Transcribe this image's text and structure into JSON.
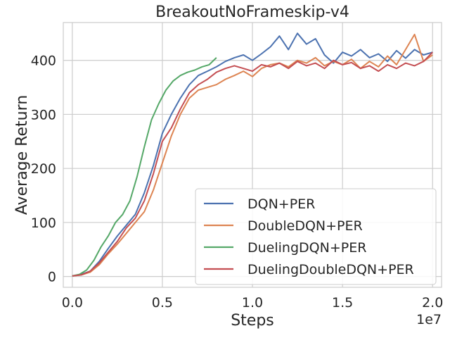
{
  "chart_data": {
    "type": "line",
    "title": "BreakoutNoFrameskip-v4",
    "xlabel": "Steps",
    "ylabel": "Average Return",
    "x_offset_label": "1e7",
    "xlim": [
      -0.05,
      2.05
    ],
    "ylim": [
      -20,
      470
    ],
    "x_ticks": [
      0.0,
      0.5,
      1.0,
      1.5,
      2.0
    ],
    "x_tick_labels": [
      "0.0",
      "0.5",
      "1.0",
      "1.5",
      "2.0"
    ],
    "y_ticks": [
      0,
      100,
      200,
      300,
      400
    ],
    "y_tick_labels": [
      "0",
      "100",
      "200",
      "300",
      "400"
    ],
    "grid": true,
    "legend_position": "lower-right",
    "series": [
      {
        "name": "DQN+PER",
        "color": "#4c72b0",
        "points": [
          [
            0.0,
            1
          ],
          [
            0.05,
            4
          ],
          [
            0.1,
            10
          ],
          [
            0.15,
            28
          ],
          [
            0.2,
            52
          ],
          [
            0.25,
            75
          ],
          [
            0.3,
            95
          ],
          [
            0.35,
            115
          ],
          [
            0.4,
            155
          ],
          [
            0.45,
            205
          ],
          [
            0.5,
            265
          ],
          [
            0.55,
            300
          ],
          [
            0.6,
            330
          ],
          [
            0.65,
            355
          ],
          [
            0.7,
            372
          ],
          [
            0.75,
            380
          ],
          [
            0.8,
            388
          ],
          [
            0.85,
            398
          ],
          [
            0.9,
            405
          ],
          [
            0.95,
            410
          ],
          [
            1.0,
            400
          ],
          [
            1.05,
            412
          ],
          [
            1.1,
            425
          ],
          [
            1.15,
            445
          ],
          [
            1.2,
            420
          ],
          [
            1.25,
            450
          ],
          [
            1.3,
            430
          ],
          [
            1.35,
            440
          ],
          [
            1.4,
            410
          ],
          [
            1.45,
            395
          ],
          [
            1.5,
            415
          ],
          [
            1.55,
            408
          ],
          [
            1.6,
            420
          ],
          [
            1.65,
            405
          ],
          [
            1.7,
            412
          ],
          [
            1.75,
            398
          ],
          [
            1.8,
            418
          ],
          [
            1.85,
            404
          ],
          [
            1.9,
            420
          ],
          [
            1.95,
            410
          ],
          [
            2.0,
            415
          ]
        ]
      },
      {
        "name": "DoubleDQN+PER",
        "color": "#dd8452",
        "points": [
          [
            0.0,
            1
          ],
          [
            0.05,
            3
          ],
          [
            0.1,
            8
          ],
          [
            0.15,
            22
          ],
          [
            0.2,
            42
          ],
          [
            0.25,
            60
          ],
          [
            0.3,
            80
          ],
          [
            0.35,
            100
          ],
          [
            0.4,
            120
          ],
          [
            0.45,
            160
          ],
          [
            0.5,
            210
          ],
          [
            0.55,
            260
          ],
          [
            0.6,
            300
          ],
          [
            0.65,
            330
          ],
          [
            0.7,
            345
          ],
          [
            0.75,
            350
          ],
          [
            0.8,
            355
          ],
          [
            0.85,
            365
          ],
          [
            0.9,
            372
          ],
          [
            0.95,
            380
          ],
          [
            1.0,
            370
          ],
          [
            1.05,
            385
          ],
          [
            1.1,
            392
          ],
          [
            1.15,
            395
          ],
          [
            1.2,
            388
          ],
          [
            1.25,
            400
          ],
          [
            1.3,
            395
          ],
          [
            1.35,
            405
          ],
          [
            1.4,
            390
          ],
          [
            1.45,
            398
          ],
          [
            1.5,
            392
          ],
          [
            1.55,
            402
          ],
          [
            1.6,
            385
          ],
          [
            1.65,
            398
          ],
          [
            1.7,
            388
          ],
          [
            1.75,
            408
          ],
          [
            1.8,
            392
          ],
          [
            1.85,
            420
          ],
          [
            1.9,
            448
          ],
          [
            1.95,
            398
          ],
          [
            2.0,
            410
          ]
        ]
      },
      {
        "name": "DuelingDQN+PER",
        "color": "#55a868",
        "points": [
          [
            0.0,
            1
          ],
          [
            0.04,
            4
          ],
          [
            0.08,
            12
          ],
          [
            0.12,
            30
          ],
          [
            0.16,
            55
          ],
          [
            0.2,
            75
          ],
          [
            0.24,
            100
          ],
          [
            0.28,
            115
          ],
          [
            0.32,
            140
          ],
          [
            0.36,
            185
          ],
          [
            0.4,
            240
          ],
          [
            0.44,
            290
          ],
          [
            0.48,
            320
          ],
          [
            0.52,
            345
          ],
          [
            0.56,
            362
          ],
          [
            0.6,
            372
          ],
          [
            0.64,
            378
          ],
          [
            0.68,
            382
          ],
          [
            0.72,
            388
          ],
          [
            0.76,
            392
          ],
          [
            0.8,
            405
          ]
        ]
      },
      {
        "name": "DuelingDoubleDQN+PER",
        "color": "#c44e52",
        "points": [
          [
            0.0,
            1
          ],
          [
            0.05,
            3
          ],
          [
            0.1,
            10
          ],
          [
            0.15,
            25
          ],
          [
            0.2,
            45
          ],
          [
            0.25,
            65
          ],
          [
            0.3,
            90
          ],
          [
            0.35,
            108
          ],
          [
            0.4,
            140
          ],
          [
            0.45,
            190
          ],
          [
            0.5,
            250
          ],
          [
            0.55,
            275
          ],
          [
            0.6,
            310
          ],
          [
            0.65,
            340
          ],
          [
            0.7,
            355
          ],
          [
            0.75,
            365
          ],
          [
            0.8,
            378
          ],
          [
            0.85,
            385
          ],
          [
            0.9,
            390
          ],
          [
            0.95,
            385
          ],
          [
            1.0,
            380
          ],
          [
            1.05,
            392
          ],
          [
            1.1,
            388
          ],
          [
            1.15,
            395
          ],
          [
            1.2,
            385
          ],
          [
            1.25,
            398
          ],
          [
            1.3,
            390
          ],
          [
            1.35,
            395
          ],
          [
            1.4,
            385
          ],
          [
            1.45,
            400
          ],
          [
            1.5,
            392
          ],
          [
            1.55,
            396
          ],
          [
            1.6,
            385
          ],
          [
            1.65,
            390
          ],
          [
            1.7,
            380
          ],
          [
            1.75,
            392
          ],
          [
            1.8,
            385
          ],
          [
            1.85,
            395
          ],
          [
            1.9,
            390
          ],
          [
            1.95,
            398
          ],
          [
            2.0,
            415
          ]
        ]
      }
    ]
  }
}
